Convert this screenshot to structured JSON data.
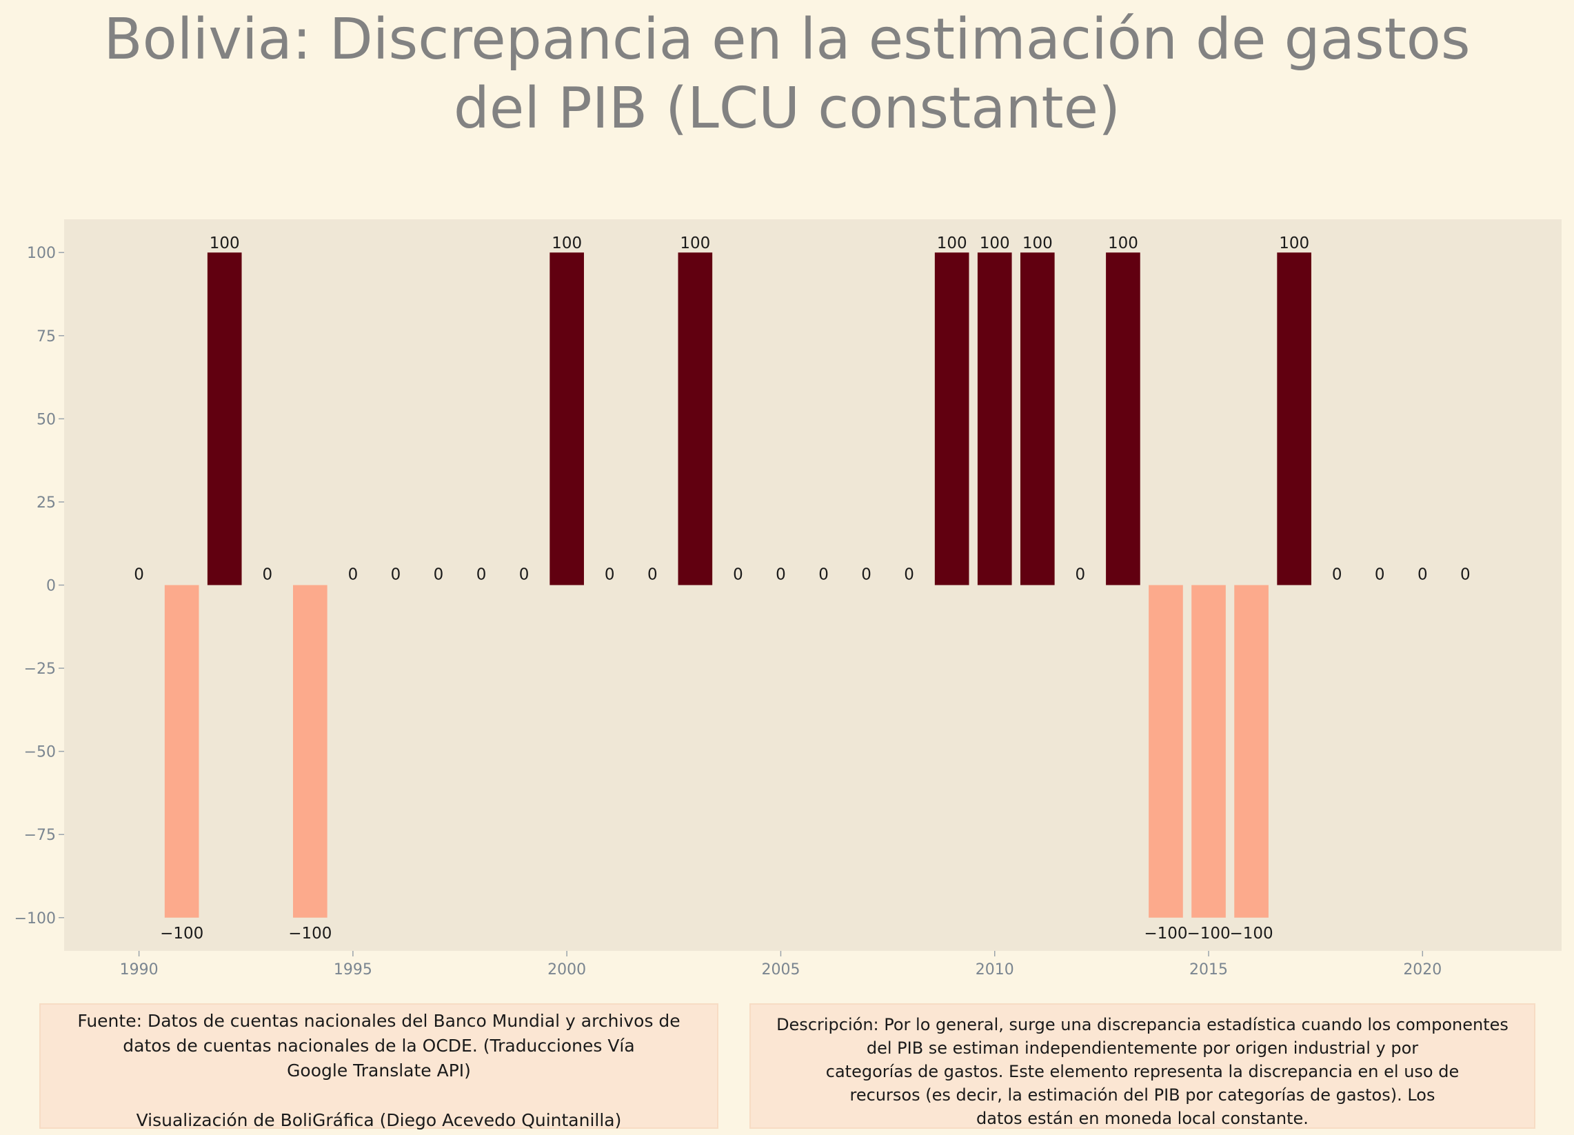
{
  "title_line1": "Bolivia:  Discrepancia en la estimación de gastos",
  "title_line2": "del PIB (LCU constante)",
  "source": {
    "text": "Fuente: Datos de cuentas nacionales del Banco Mundial y archivos de\ndatos de cuentas nacionales de la OCDE. (Traducciones Vía\nGoogle Translate API)",
    "credit": "Visualización de BoliGráfica (Diego Acevedo Quintanilla)"
  },
  "description": "Descripción: Por lo general, surge una discrepancia estadística cuando los componentes\ndel PIB se estiman independientemente por origen industrial y por\ncategorías de gastos. Este elemento representa la discrepancia en el uso de\nrecursos (es decir, la estimación del PIB por categorías de gastos). Los\ndatos están en moneda local constante.",
  "colors": {
    "positive": "#610010",
    "negative": "#fcaa8c",
    "plot_bg": "#efe7d6",
    "tick_text": "#7a8590",
    "label_text": "#1a1a1a"
  },
  "chart_data": {
    "type": "bar",
    "title": "Bolivia:  Discrepancia en la estimación de gastos del PIB (LCU constante)",
    "xlabel": "",
    "ylabel": "",
    "x": [
      1990,
      1991,
      1992,
      1993,
      1994,
      1995,
      1996,
      1997,
      1998,
      1999,
      2000,
      2001,
      2002,
      2003,
      2004,
      2005,
      2006,
      2007,
      2008,
      2009,
      2010,
      2011,
      2012,
      2013,
      2014,
      2015,
      2016,
      2017,
      2018,
      2019,
      2020,
      2021
    ],
    "values": [
      0,
      -100,
      100,
      0,
      -100,
      0,
      0,
      0,
      0,
      0,
      100,
      0,
      0,
      100,
      0,
      0,
      0,
      0,
      0,
      100,
      100,
      100,
      0,
      100,
      -100,
      -100,
      -100,
      100,
      0,
      0,
      0,
      0
    ],
    "data_labels": [
      "0",
      "−100",
      "100",
      "0",
      "−100",
      "0",
      "0",
      "0",
      "0",
      "0",
      "100",
      "0",
      "0",
      "100",
      "0",
      "0",
      "0",
      "0",
      "0",
      "100",
      "100",
      "100",
      "0",
      "100",
      "−100",
      "−100",
      "−100",
      "100",
      "0",
      "0",
      "0",
      "0"
    ],
    "xticks": [
      1990,
      1995,
      2000,
      2005,
      2010,
      2015,
      2020
    ],
    "yticks": [
      100,
      75,
      50,
      25,
      0,
      -25,
      -50,
      -75,
      -100
    ],
    "ytick_labels": [
      "100",
      "75",
      "50",
      "25",
      "0",
      "−25",
      "−50",
      "−75",
      "−100"
    ],
    "xlim": [
      1988.25,
      2023.25
    ],
    "ylim": [
      -110,
      110
    ],
    "grid": false,
    "legend": "none"
  }
}
